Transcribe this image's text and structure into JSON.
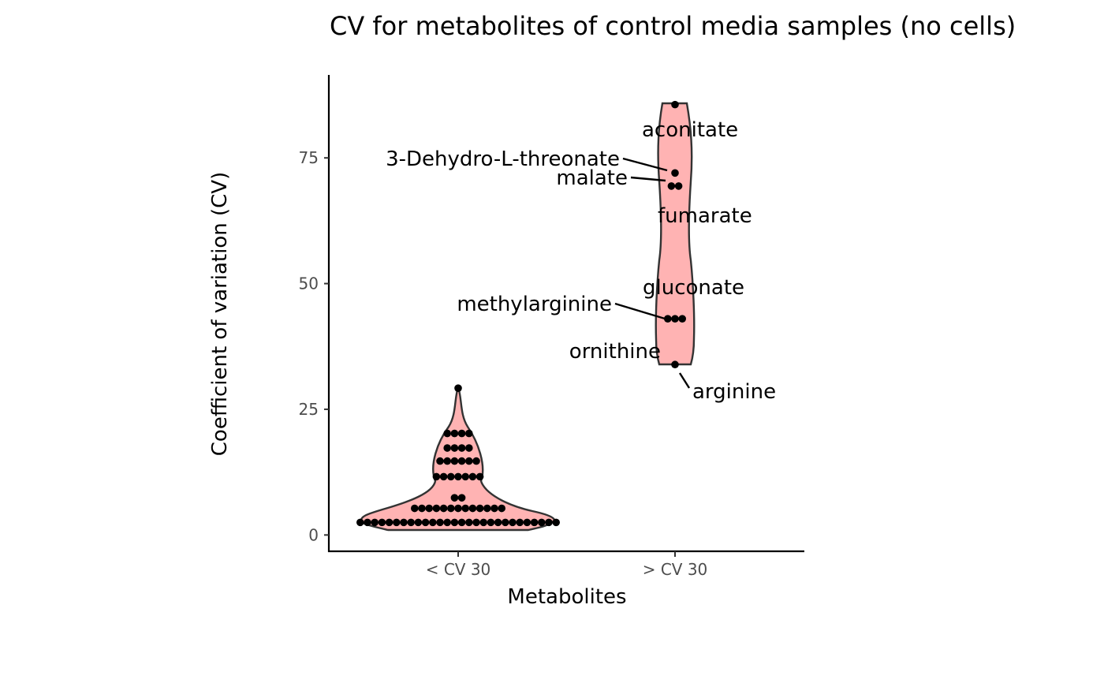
{
  "chart_data": {
    "type": "violin",
    "title": "CV for metabolites of control media samples (no cells)",
    "xlabel": "Metabolites",
    "ylabel": "Coefficient of variation (CV)",
    "categories": [
      "< CV 30",
      "> CV 30"
    ],
    "ylim": [
      -3.4,
      91.5
    ],
    "yticks": [
      0,
      25,
      50,
      75
    ],
    "grid": false,
    "legend": "none",
    "fill_color": "#ffb3b3",
    "outline_color": "#333333",
    "point_color": "#000000",
    "groups": [
      {
        "category": "< CV 30",
        "points": [
          {
            "y": 2.5,
            "n": 28
          },
          {
            "y": 5.3,
            "n": 13
          },
          {
            "y": 7.4,
            "n": 2
          },
          {
            "y": 11.6,
            "n": 7
          },
          {
            "y": 14.7,
            "n": 6
          },
          {
            "y": 17.3,
            "n": 4
          },
          {
            "y": 20.2,
            "n": 4
          },
          {
            "y": 29.2,
            "n": 1
          }
        ]
      },
      {
        "category": "> CV 30",
        "points": [
          {
            "y": 85.6,
            "n": 1
          },
          {
            "y": 72.0,
            "n": 1
          },
          {
            "y": 69.4,
            "n": 2
          },
          {
            "y": 43.0,
            "n": 3
          },
          {
            "y": 33.9,
            "n": 1
          }
        ]
      }
    ],
    "annotations": [
      {
        "text": "aconitate"
      },
      {
        "text": "3-Dehydro-L-threonate"
      },
      {
        "text": "malate"
      },
      {
        "text": "fumarate"
      },
      {
        "text": "gluconate"
      },
      {
        "text": "methylarginine"
      },
      {
        "text": "ornithine"
      },
      {
        "text": "arginine"
      }
    ]
  }
}
